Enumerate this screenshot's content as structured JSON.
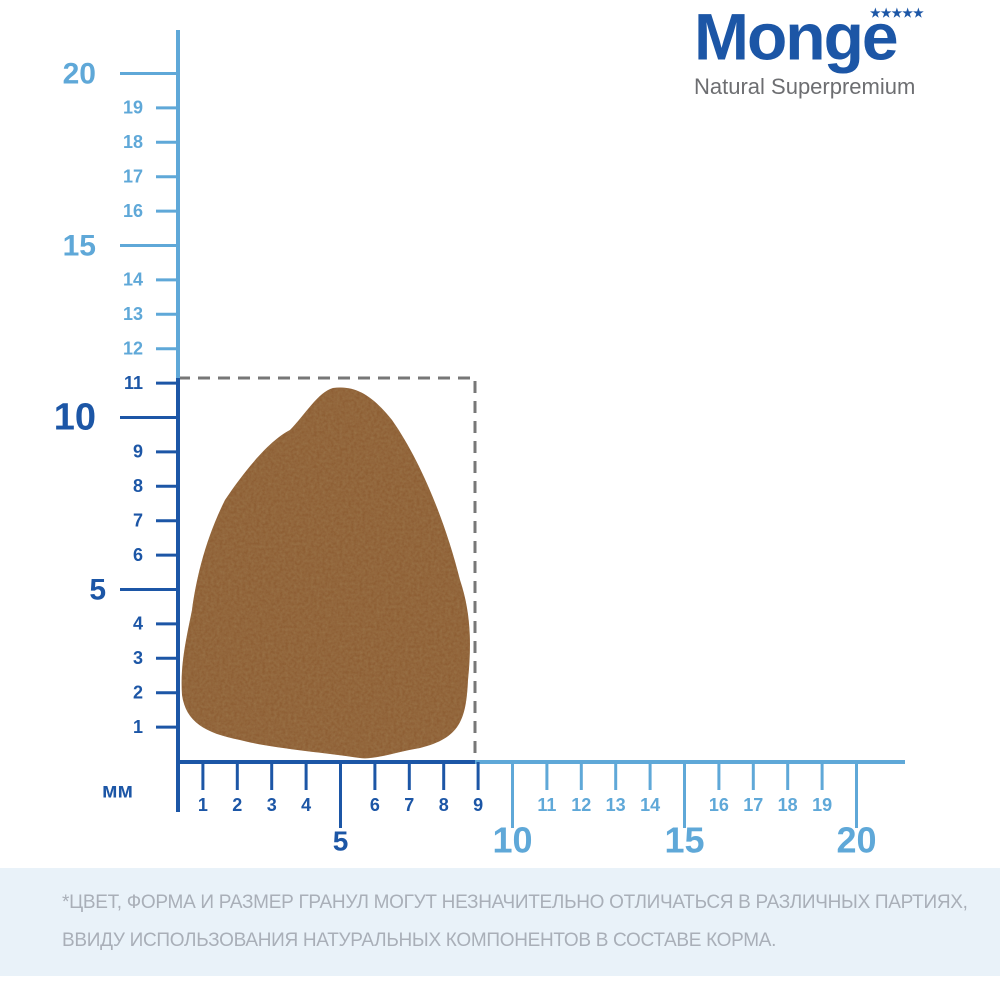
{
  "logo": {
    "brand": "Monge",
    "tagline": "Natural Superpremium"
  },
  "unit": "мм",
  "y_axis": {
    "labels": [
      "1",
      "2",
      "3",
      "4",
      "5",
      "6",
      "7",
      "8",
      "9",
      "10",
      "11",
      "12",
      "13",
      "14",
      "15",
      "16",
      "17",
      "18",
      "19",
      "20"
    ]
  },
  "x_axis": {
    "labels": [
      "1",
      "2",
      "3",
      "4",
      "5",
      "6",
      "7",
      "8",
      "9",
      "10",
      "11",
      "12",
      "13",
      "14",
      "15",
      "16",
      "17",
      "18",
      "19",
      "20"
    ]
  },
  "footnote": [
    "*ЦВЕТ, ФОРМА И РАЗМЕР ГРАНУЛ МОГУТ НЕЗНАЧИТЕЛЬНО ОТЛИЧАТЬСЯ В РАЗЛИЧНЫХ ПАРТИЯХ,",
    "ВВИДУ ИСПОЛЬЗОВАНИЯ НАТУРАЛЬНЫХ КОМПОНЕНТОВ В СОСТАВЕ КОРМА."
  ]
}
